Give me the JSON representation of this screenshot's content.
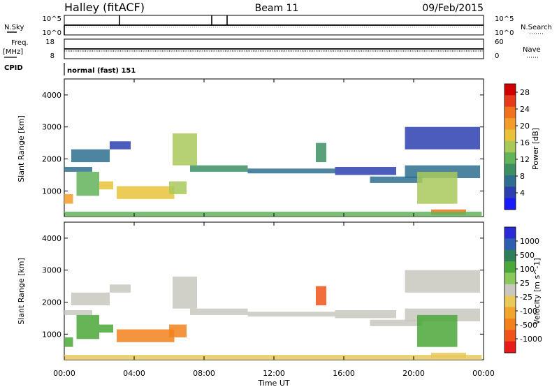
{
  "header": {
    "station": "Halley (fitACF)",
    "beam": "Beam 11",
    "date": "09/Feb/2015"
  },
  "top_panels": {
    "nsky_label": "N.Sky",
    "nsearch_label": "N.Search",
    "noise_ticks_left": [
      "10^5",
      "10^0"
    ],
    "noise_ticks_right": [
      "10^5",
      "10^0"
    ],
    "freq_label": "Freq.",
    "freq_unit": "[MHz]",
    "freq_ticks": [
      "18",
      "8"
    ],
    "nave_label": "Nave",
    "nave_ticks": [
      "60",
      "0"
    ],
    "cpid_label": "CPID",
    "cpid_value": "normal (fast) 151"
  },
  "colors": {
    "power_scale": [
      "#1a1aff",
      "#2b3fb0",
      "#2e6e8e",
      "#3d8f63",
      "#63b35a",
      "#a8c95a",
      "#e8c33a",
      "#f29c2a",
      "#f2711c",
      "#e83a1a",
      "#d10000"
    ],
    "velocity_scale": [
      "#2a2ad6",
      "#2c5fb0",
      "#2e7e5a",
      "#4aa83a",
      "#88c95a",
      "#c8c8c0",
      "#e8c95a",
      "#f2a52a",
      "#f2811c",
      "#f0521a",
      "#e81a1a"
    ]
  },
  "chart_data": [
    {
      "type": "heatmap",
      "title": "Power",
      "xlabel": "Time UT",
      "ylabel": "Slant Range [km]",
      "xlim": [
        "00:00",
        "24:00"
      ],
      "xticks": [
        "00:00",
        "04:00",
        "08:00",
        "12:00",
        "16:00",
        "20:00",
        "00:00"
      ],
      "ylim": [
        200,
        4500
      ],
      "yticks": [
        "1000",
        "2000",
        "3000",
        "4000"
      ],
      "colorbar": {
        "label": "Power [dB]",
        "ticks": [
          "4",
          "8",
          "12",
          "16",
          "20",
          "24",
          "28"
        ],
        "range": [
          0,
          30
        ]
      },
      "regions": [
        {
          "t0": 0.0,
          "t1": 1.6,
          "r0": 1600,
          "r1": 1750,
          "value": 8
        },
        {
          "t0": 0.4,
          "t1": 2.6,
          "r0": 1900,
          "r1": 2300,
          "value": 6
        },
        {
          "t0": 2.6,
          "t1": 3.8,
          "r0": 2300,
          "r1": 2550,
          "value": 5
        },
        {
          "t0": 0.0,
          "t1": 0.5,
          "r0": 600,
          "r1": 900,
          "value": 20
        },
        {
          "t0": 0.7,
          "t1": 2.0,
          "r0": 850,
          "r1": 1600,
          "value": 12
        },
        {
          "t0": 2.0,
          "t1": 2.8,
          "r0": 1050,
          "r1": 1300,
          "value": 18
        },
        {
          "t0": 3.0,
          "t1": 6.3,
          "r0": 750,
          "r1": 1150,
          "value": 18
        },
        {
          "t0": 6.0,
          "t1": 7.0,
          "r0": 900,
          "r1": 1300,
          "value": 16
        },
        {
          "t0": 6.2,
          "t1": 7.6,
          "r0": 1800,
          "r1": 2800,
          "value": 14
        },
        {
          "t0": 7.2,
          "t1": 10.5,
          "r0": 1600,
          "r1": 1800,
          "value": 10
        },
        {
          "t0": 10.5,
          "t1": 15.5,
          "r0": 1550,
          "r1": 1700,
          "value": 6
        },
        {
          "t0": 14.4,
          "t1": 15.0,
          "r0": 1900,
          "r1": 2500,
          "value": 10
        },
        {
          "t0": 15.5,
          "t1": 19.0,
          "r0": 1500,
          "r1": 1750,
          "value": 5
        },
        {
          "t0": 17.5,
          "t1": 20.5,
          "r0": 1250,
          "r1": 1450,
          "value": 6
        },
        {
          "t0": 19.5,
          "t1": 23.8,
          "r0": 1400,
          "r1": 1800,
          "value": 8
        },
        {
          "t0": 20.2,
          "t1": 22.5,
          "r0": 600,
          "r1": 1600,
          "value": 14
        },
        {
          "t0": 21.0,
          "t1": 23.0,
          "r0": 250,
          "r1": 420,
          "value": 22
        },
        {
          "t0": 19.5,
          "t1": 23.8,
          "r0": 2300,
          "r1": 3000,
          "value": 4
        },
        {
          "t0": 0.0,
          "t1": 23.9,
          "r0": 200,
          "r1": 350,
          "value": 12
        }
      ]
    },
    {
      "type": "heatmap",
      "title": "Velocity",
      "xlabel": "Time UT",
      "ylabel": "Slant Range [km]",
      "xlim": [
        "00:00",
        "24:00"
      ],
      "xticks": [
        "00:00",
        "04:00",
        "08:00",
        "12:00",
        "16:00",
        "20:00",
        "00:00"
      ],
      "ylim": [
        200,
        4500
      ],
      "yticks": [
        "1000",
        "2000",
        "3000",
        "4000"
      ],
      "colorbar": {
        "label": "Velocity [m s^-1]",
        "ticks": [
          "1000",
          "500",
          "100",
          "25",
          "-25",
          "-100",
          "-500",
          "-1000"
        ]
      },
      "regions": [
        {
          "t0": 0.0,
          "t1": 1.6,
          "r0": 1600,
          "r1": 1750,
          "value": 0
        },
        {
          "t0": 0.4,
          "t1": 2.6,
          "r0": 1900,
          "r1": 2300,
          "value": 0
        },
        {
          "t0": 2.6,
          "t1": 3.8,
          "r0": 2300,
          "r1": 2550,
          "value": 0
        },
        {
          "t0": 0.0,
          "t1": 0.5,
          "r0": 600,
          "r1": 900,
          "value": 150
        },
        {
          "t0": 0.7,
          "t1": 2.0,
          "r0": 850,
          "r1": 1600,
          "value": 250
        },
        {
          "t0": 2.0,
          "t1": 2.8,
          "r0": 1050,
          "r1": 1300,
          "value": 120
        },
        {
          "t0": 3.0,
          "t1": 6.3,
          "r0": 750,
          "r1": 1150,
          "value": -300
        },
        {
          "t0": 6.0,
          "t1": 7.0,
          "r0": 900,
          "r1": 1300,
          "value": -400
        },
        {
          "t0": 6.2,
          "t1": 7.6,
          "r0": 1800,
          "r1": 2800,
          "value": 0
        },
        {
          "t0": 7.2,
          "t1": 10.5,
          "r0": 1600,
          "r1": 1800,
          "value": 0
        },
        {
          "t0": 10.5,
          "t1": 15.5,
          "r0": 1550,
          "r1": 1700,
          "value": 0
        },
        {
          "t0": 14.4,
          "t1": 15.0,
          "r0": 1900,
          "r1": 2500,
          "value": -600
        },
        {
          "t0": 15.5,
          "t1": 19.0,
          "r0": 1500,
          "r1": 1750,
          "value": 0
        },
        {
          "t0": 17.5,
          "t1": 20.5,
          "r0": 1250,
          "r1": 1450,
          "value": 0
        },
        {
          "t0": 19.5,
          "t1": 23.8,
          "r0": 1400,
          "r1": 1800,
          "value": 0
        },
        {
          "t0": 20.2,
          "t1": 22.5,
          "r0": 600,
          "r1": 1600,
          "value": 200
        },
        {
          "t0": 21.0,
          "t1": 23.0,
          "r0": 250,
          "r1": 420,
          "value": -80
        },
        {
          "t0": 19.5,
          "t1": 23.8,
          "r0": 2300,
          "r1": 3000,
          "value": 0
        },
        {
          "t0": 0.0,
          "t1": 23.9,
          "r0": 200,
          "r1": 350,
          "value": -60
        }
      ]
    }
  ]
}
